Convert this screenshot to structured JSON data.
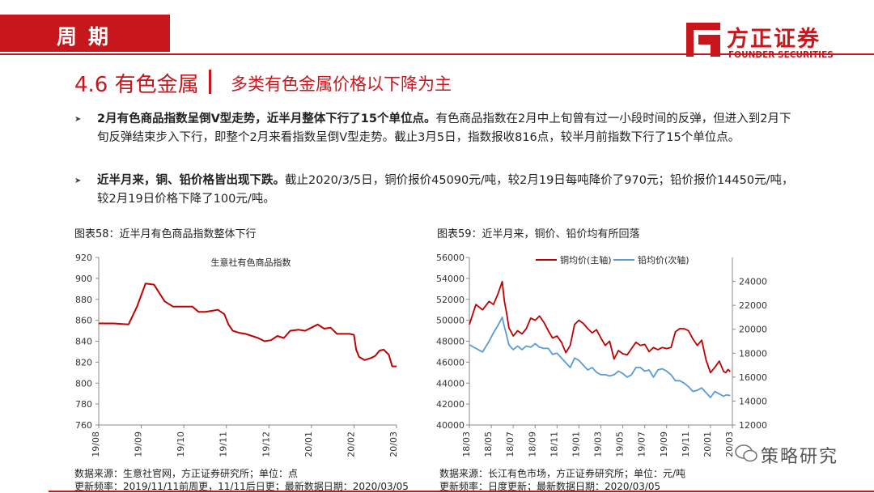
{
  "header": {
    "section": "周期",
    "logo_cn": "方正证券",
    "logo_en": "FOUNDER SECURITIES",
    "logo_icon": "founder-logo-icon"
  },
  "title": {
    "number": "4.6 有色金属",
    "subtitle": "多类有色金属价格以下降为主"
  },
  "bullets": [
    {
      "bold": "2月有色商品指数呈倒V型走势，近半月整体下行了15个单位点。",
      "text": "有色商品指数在2月中上旬曾有过一小段时间的反弹，但进入到2月下旬反弹结束步入下行，即整个2月来看指数呈倒V型走势。截止3月5日，指数报收816点，较半月前指数下行了15个单位点。"
    },
    {
      "bold": "近半月来，铜、铅价格皆出现下跌。",
      "text": "截止2020/3/5日，铜价报价45090元/吨，较2月19日每吨降价了970元；铅价报价14450元/吨，较2月19日价格下降了100元/吨。"
    }
  ],
  "chart1": {
    "caption": "图表58：近半月有色商品指数整体下行",
    "source": "数据来源：生意社官网，方正证券研究所；单位：点",
    "update": "更新频率：2019/11/11前周更，11/11后日更；最新数据日期：2020/03/05"
  },
  "chart2": {
    "caption": "图表59：近半月来，铜价、铅价均有所回落",
    "source": "数据来源：长江有色市场，方正证券研究所；单位：元/吨",
    "update": "更新频率：日度更新；最新数据日期：2020/03/05"
  },
  "watermark": {
    "text": "策略研究",
    "icon": "wechat-icon"
  },
  "chart_data": [
    {
      "type": "line",
      "title": "",
      "legend_label": "生意社有色商品指数",
      "xlabel": "",
      "ylabel": "",
      "ylim": [
        760,
        920
      ],
      "yticks": [
        760,
        780,
        800,
        820,
        840,
        860,
        880,
        900,
        920
      ],
      "xticks": [
        "19/08",
        "19/09",
        "19/10",
        "19/11",
        "19/12",
        "20/01",
        "20/02",
        "20/03"
      ],
      "grid": false,
      "color": "#c00000",
      "series": [
        {
          "name": "生意社有色商品指数",
          "x": [
            0.0,
            0.35,
            0.7,
            0.9,
            1.1,
            1.3,
            1.55,
            1.75,
            2.0,
            2.2,
            2.35,
            2.5,
            2.65,
            2.8,
            2.95,
            3.05,
            3.15,
            3.3,
            3.45,
            3.6,
            3.75,
            3.9,
            4.05,
            4.2,
            4.35,
            4.5,
            4.7,
            4.85,
            5.0,
            5.15,
            5.3,
            5.45,
            5.6,
            5.75,
            5.9,
            6.0,
            6.05,
            6.12,
            6.25,
            6.4,
            6.5,
            6.6,
            6.7,
            6.82,
            6.9,
            7.0
          ],
          "values": [
            857,
            857,
            856,
            873,
            895,
            894,
            878,
            873,
            873,
            873,
            868,
            868,
            869,
            870,
            866,
            856,
            850,
            848,
            847,
            845,
            843,
            840,
            841,
            845,
            843,
            850,
            851,
            850,
            853,
            856,
            852,
            853,
            847,
            847,
            847,
            846,
            832,
            825,
            822,
            824,
            826,
            831,
            832,
            827,
            816,
            816
          ]
        }
      ]
    },
    {
      "type": "line",
      "title": "",
      "xlabel": "",
      "ylabel": "",
      "ylim": [
        40000,
        56000
      ],
      "yticks": [
        40000,
        42000,
        44000,
        46000,
        48000,
        50000,
        52000,
        54000,
        56000
      ],
      "y2lim": [
        12000,
        26000
      ],
      "y2ticks": [
        12000,
        14000,
        16000,
        18000,
        20000,
        22000,
        24000
      ],
      "xticks": [
        "18/03",
        "18/05",
        "18/07",
        "18/09",
        "18/11",
        "19/01",
        "19/03",
        "19/05",
        "19/07",
        "19/09",
        "19/11",
        "20/01",
        "20/03"
      ],
      "grid": false,
      "legend": "top",
      "series": [
        {
          "name": "铜均价(主轴)",
          "axis": "primary",
          "color": "#c00000",
          "x": [
            0,
            0.3,
            0.6,
            0.9,
            1.1,
            1.3,
            1.5,
            1.6,
            1.7,
            1.8,
            2.0,
            2.2,
            2.4,
            2.6,
            2.8,
            3.0,
            3.2,
            3.4,
            3.6,
            3.8,
            4.0,
            4.2,
            4.4,
            4.6,
            4.8,
            5.0,
            5.2,
            5.4,
            5.6,
            5.8,
            6.0,
            6.2,
            6.4,
            6.6,
            6.8,
            7.0,
            7.2,
            7.4,
            7.6,
            7.8,
            8.0,
            8.2,
            8.4,
            8.6,
            8.8,
            9.0,
            9.2,
            9.4,
            9.6,
            9.8,
            10.0,
            10.2,
            10.4,
            10.6,
            10.8,
            11.0,
            11.2,
            11.4,
            11.6,
            11.7,
            11.8,
            11.9
          ],
          "values": [
            49600,
            51500,
            51000,
            51800,
            51500,
            52500,
            53700,
            51800,
            50700,
            49300,
            48500,
            49000,
            48700,
            49200,
            50200,
            50000,
            50400,
            49800,
            49000,
            48300,
            48500,
            47900,
            46900,
            47600,
            49600,
            50000,
            49700,
            49200,
            48800,
            49100,
            48300,
            47600,
            48000,
            46300,
            47100,
            46800,
            46700,
            47300,
            47900,
            47600,
            47700,
            47000,
            47400,
            47200,
            47400,
            47300,
            47400,
            48900,
            49200,
            49200,
            49000,
            48200,
            47600,
            48100,
            46200,
            45000,
            45500,
            46100,
            45100,
            45000,
            45300,
            45090
          ]
        },
        {
          "name": "铅均价(次轴)",
          "axis": "secondary",
          "color": "#5b9bd5",
          "x": [
            0,
            0.3,
            0.6,
            0.9,
            1.1,
            1.3,
            1.5,
            1.6,
            1.7,
            1.8,
            2.0,
            2.2,
            2.4,
            2.6,
            2.8,
            3.0,
            3.2,
            3.4,
            3.6,
            3.8,
            4.0,
            4.2,
            4.4,
            4.6,
            4.8,
            5.0,
            5.2,
            5.4,
            5.6,
            5.8,
            6.0,
            6.2,
            6.4,
            6.6,
            6.8,
            7.0,
            7.2,
            7.4,
            7.6,
            7.8,
            8.0,
            8.2,
            8.4,
            8.6,
            8.8,
            9.0,
            9.2,
            9.4,
            9.6,
            9.8,
            10.0,
            10.2,
            10.4,
            10.6,
            10.8,
            11.0,
            11.2,
            11.4,
            11.6,
            11.7,
            11.8,
            11.9
          ],
          "values": [
            18700,
            18400,
            18100,
            19000,
            19700,
            20300,
            21000,
            20200,
            19500,
            18700,
            18300,
            18600,
            18300,
            18600,
            18500,
            18800,
            18500,
            18400,
            18400,
            17900,
            18000,
            17600,
            17200,
            16800,
            17600,
            17400,
            17000,
            16600,
            16800,
            16400,
            16200,
            16200,
            16100,
            16200,
            16500,
            16300,
            16000,
            16200,
            16800,
            16800,
            16500,
            16600,
            16000,
            16600,
            16700,
            16500,
            16200,
            15700,
            15700,
            15500,
            15200,
            14800,
            14900,
            15100,
            14700,
            14300,
            14800,
            14600,
            14400,
            14500,
            14500,
            14450
          ]
        }
      ]
    }
  ]
}
